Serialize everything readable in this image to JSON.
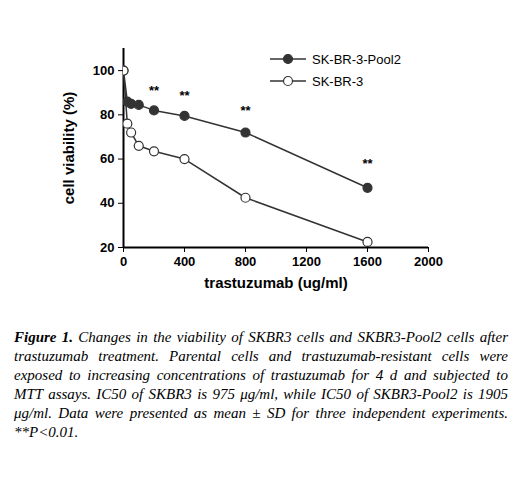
{
  "chart_data": {
    "type": "line",
    "xlabel": "trastuzumab (ug/ml)",
    "ylabel": "cell viability (%)",
    "x": [
      0,
      25,
      50,
      100,
      200,
      400,
      800,
      1600
    ],
    "series": [
      {
        "name": "SK-BR-3-Pool2",
        "color": "#333333",
        "marker": "filled_circle",
        "line_style": "solid",
        "values": [
          100,
          86,
          85,
          84.5,
          82,
          79.5,
          72,
          47
        ]
      },
      {
        "name": "SK-BR-3",
        "color": "#333333",
        "marker": "open_circle",
        "line_style": "solid",
        "values": [
          100,
          76,
          72,
          66,
          63.5,
          60,
          42.5,
          22.5
        ]
      }
    ],
    "annotations": [
      {
        "text": "**",
        "x": 200,
        "y": 89
      },
      {
        "text": "**",
        "x": 400,
        "y": 87
      },
      {
        "text": "**",
        "x": 800,
        "y": 80
      },
      {
        "text": "**",
        "x": 1600,
        "y": 56
      }
    ],
    "xlim": [
      0,
      2000
    ],
    "xticks": [
      0,
      400,
      800,
      1200,
      1600,
      2000
    ],
    "ylim": [
      20,
      110
    ],
    "yticks": [
      20,
      40,
      60,
      80,
      100
    ],
    "grid": false,
    "legend": "top-right",
    "caption_title": "Figure 1.",
    "caption": "Changes in the viability of SKBR3 cells and SKBR3-Pool2 cells after trastuzumab treatment. Parental cells and trastuzumab-resistant cells were exposed to increasing concentrations of trastuzumab for 4 d and subjected to MTT assays. IC50 of SKBR3 is 975 μg/ml, while IC50 of SKBR3-Pool2 is 1905 μg/ml. Data were presented as mean ± SD for three independent experiments. **P<0.01."
  }
}
